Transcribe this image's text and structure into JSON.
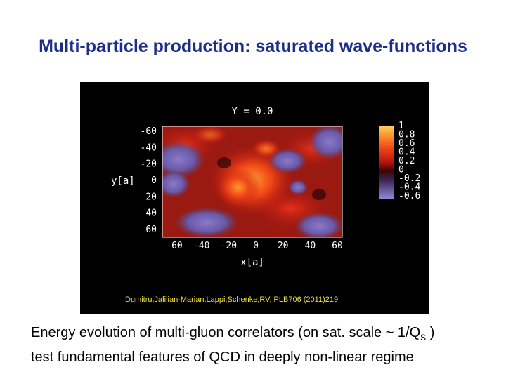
{
  "slide": {
    "title": "Multi-particle production: saturated wave-functions",
    "caption_line1_pre": "Energy evolution of multi-gluon correlators (on sat. scale ~ 1/Q",
    "caption_line1_sub": "S",
    "caption_line1_post": " )",
    "caption_line2": "test fundamental features of  QCD in deeply non-linear regime"
  },
  "figure": {
    "plot_title": "Y = 0.0",
    "x_label": "x[a]",
    "y_label": "y[a]",
    "x_ticks": [
      "-60",
      "-40",
      "-20",
      "0",
      "20",
      "40",
      "60"
    ],
    "y_ticks": [
      "-60",
      "-40",
      "-20",
      "0",
      "20",
      "40",
      "60"
    ],
    "colorbar_ticks": [
      "1",
      "0.8",
      "0.6",
      "0.4",
      "0.2",
      "0",
      "-0.2",
      "-0.4",
      "-0.6"
    ],
    "citation": "Dumitru,Jalilian-Marian,Lappi,Schenke,RV, PLB706 (2011)219",
    "colors": {
      "background": "#000000",
      "title": "#1c2e8a",
      "citation": "#f0e040",
      "positive_high": "#ff9a30",
      "positive": "#e02a10",
      "zero": "#5a0a0a",
      "negative": "#7a68b8"
    }
  }
}
